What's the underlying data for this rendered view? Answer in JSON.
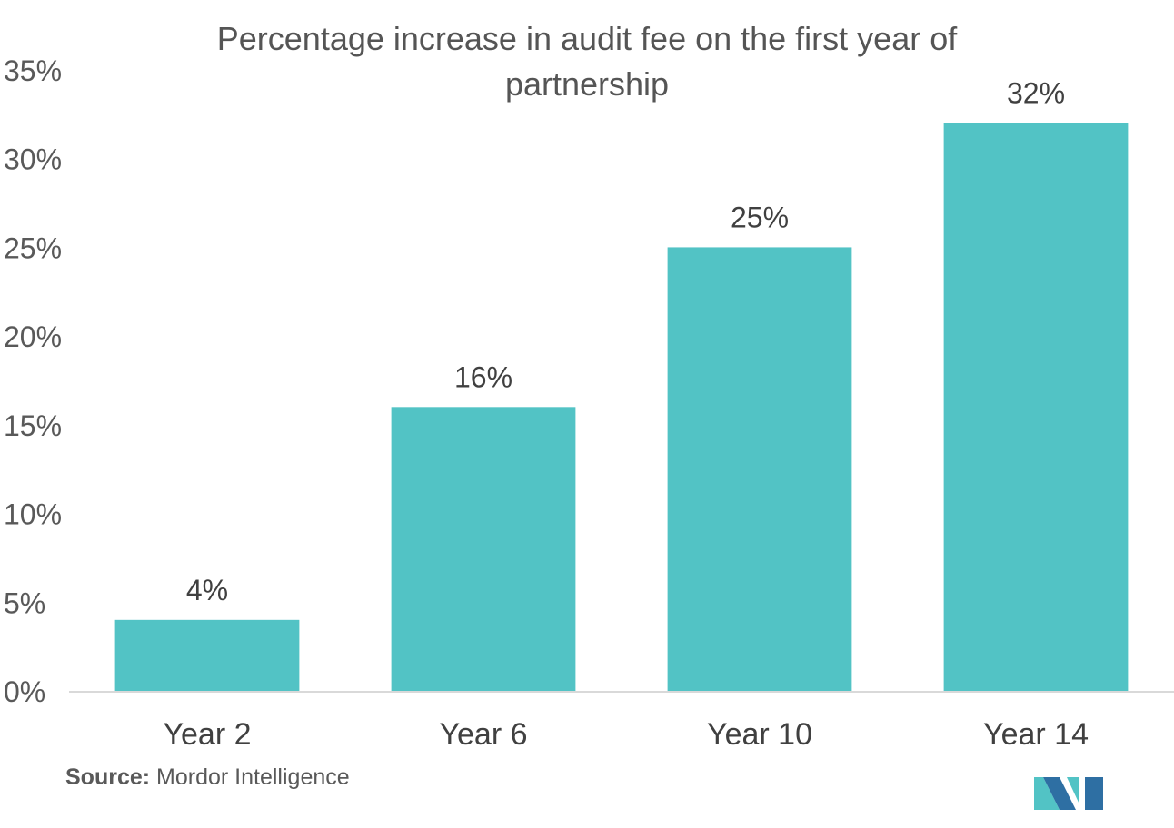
{
  "chart_data": {
    "type": "bar",
    "title_lines": [
      "Percentage increase in audit fee on the first year of",
      "partnership"
    ],
    "categories": [
      "Year 2",
      "Year 6",
      "Year 10",
      "Year 14"
    ],
    "values": [
      4,
      16,
      25,
      32
    ],
    "value_labels": [
      "4%",
      "16%",
      "25%",
      "32%"
    ],
    "ylim": [
      0,
      35
    ],
    "yticks": [
      0,
      5,
      10,
      15,
      20,
      25,
      30,
      35
    ],
    "ytick_labels": [
      "0%",
      "5%",
      "10%",
      "15%",
      "20%",
      "25%",
      "30%",
      "35%"
    ],
    "xlabel": "",
    "ylabel": "",
    "grid": false,
    "bar_color": "#52C3C5"
  },
  "source": {
    "label": "Source:",
    "text": " Mordor Intelligence"
  },
  "logo": {
    "icon": "mordor-intelligence-logo-icon",
    "colors": [
      "#2E6FA3",
      "#52C3C5"
    ]
  }
}
